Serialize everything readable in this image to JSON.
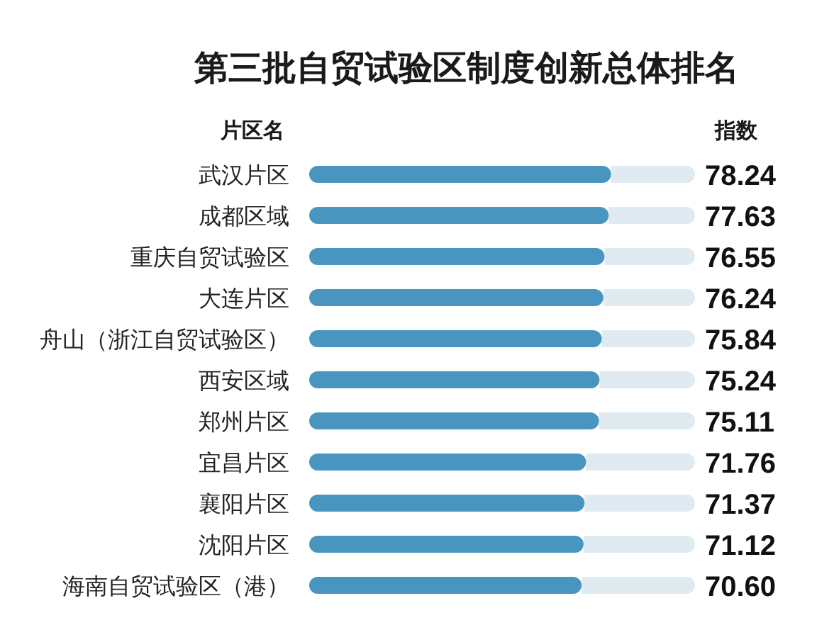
{
  "chart_data": {
    "type": "bar",
    "orientation": "horizontal",
    "stacked": true,
    "title": "第三批自贸试验区制度创新总体排名",
    "ylabel": "片区名",
    "xlabel": "指数",
    "categories": [
      "武汉片区",
      "成都区域",
      "重庆自贸试验区",
      "大连片区",
      "舟山（浙江自贸试验区）",
      "西安区域",
      "郑州片区",
      "宜昌片区",
      "襄阳片区",
      "沈阳片区",
      "海南自贸试验区（港）"
    ],
    "series": [
      {
        "color": "#4896c0",
        "values": [
          78.24,
          77.63,
          76.55,
          76.24,
          75.84,
          75.24,
          75.11,
          71.76,
          71.37,
          71.12,
          70.6
        ],
        "value_labels": [
          "78.24",
          "77.63",
          "76.55",
          "76.24",
          "75.84",
          "75.24",
          "75.11",
          "71.76",
          "71.37",
          "71.12",
          "70.60"
        ]
      },
      {
        "color": "#dfeaf1",
        "values": [
          21.76,
          22.37,
          23.45,
          23.76,
          24.16,
          24.76,
          24.89,
          28.24,
          28.63,
          28.88,
          29.4
        ]
      }
    ],
    "xlim": [
      0,
      100
    ]
  }
}
